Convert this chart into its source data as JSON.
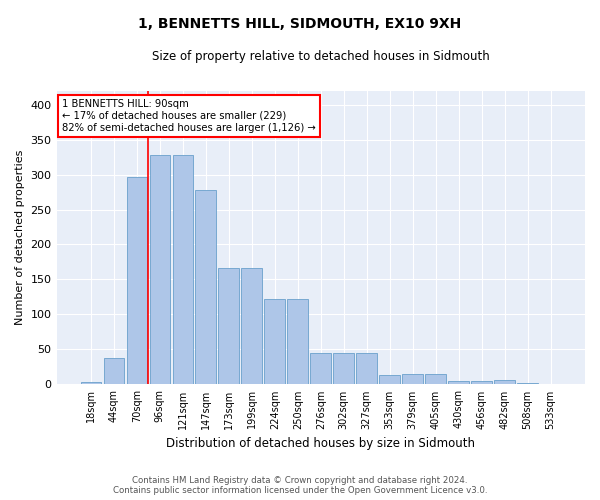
{
  "title": "1, BENNETTS HILL, SIDMOUTH, EX10 9XH",
  "subtitle": "Size of property relative to detached houses in Sidmouth",
  "xlabel": "Distribution of detached houses by size in Sidmouth",
  "ylabel": "Number of detached properties",
  "bar_color": "#aec6e8",
  "bar_edge_color": "#6aa0cc",
  "background_color": "#e8eef8",
  "grid_color": "#ffffff",
  "categories": [
    "18sqm",
    "44sqm",
    "70sqm",
    "96sqm",
    "121sqm",
    "147sqm",
    "173sqm",
    "199sqm",
    "224sqm",
    "250sqm",
    "276sqm",
    "302sqm",
    "327sqm",
    "353sqm",
    "379sqm",
    "405sqm",
    "430sqm",
    "456sqm",
    "482sqm",
    "508sqm",
    "533sqm"
  ],
  "values": [
    3,
    38,
    296,
    328,
    328,
    278,
    166,
    166,
    122,
    122,
    45,
    45,
    45,
    13,
    15,
    15,
    5,
    5,
    6,
    2,
    0
  ],
  "annotation_line1": "1 BENNETTS HILL: 90sqm",
  "annotation_line2": "← 17% of detached houses are smaller (229)",
  "annotation_line3": "82% of semi-detached houses are larger (1,126) →",
  "footer_line1": "Contains HM Land Registry data © Crown copyright and database right 2024.",
  "footer_line2": "Contains public sector information licensed under the Open Government Licence v3.0.",
  "ylim": [
    0,
    420
  ],
  "yticks": [
    0,
    50,
    100,
    150,
    200,
    250,
    300,
    350,
    400
  ],
  "vline_pos": 2.5,
  "fig_width": 6.0,
  "fig_height": 5.0,
  "dpi": 100
}
